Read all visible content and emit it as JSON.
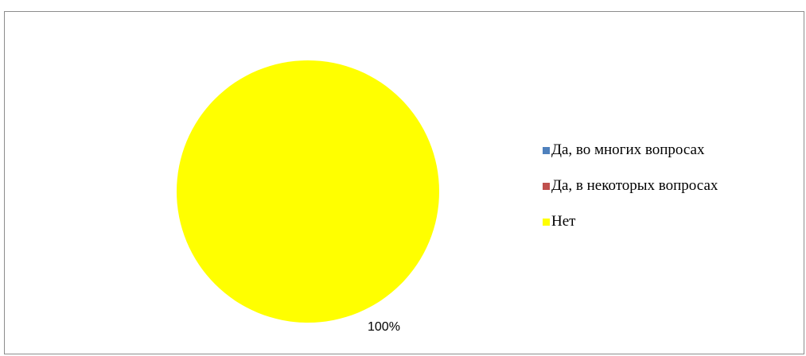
{
  "chart_data": {
    "type": "pie",
    "categories": [
      "Да, во многих вопросах",
      "Да, в некоторых вопросах",
      "Нет"
    ],
    "values": [
      0,
      0,
      100
    ],
    "colors": [
      "#4f81bd",
      "#c0504d",
      "#ffff00"
    ],
    "data_labels": [
      "",
      "",
      "100%"
    ],
    "legend_position": "right"
  }
}
